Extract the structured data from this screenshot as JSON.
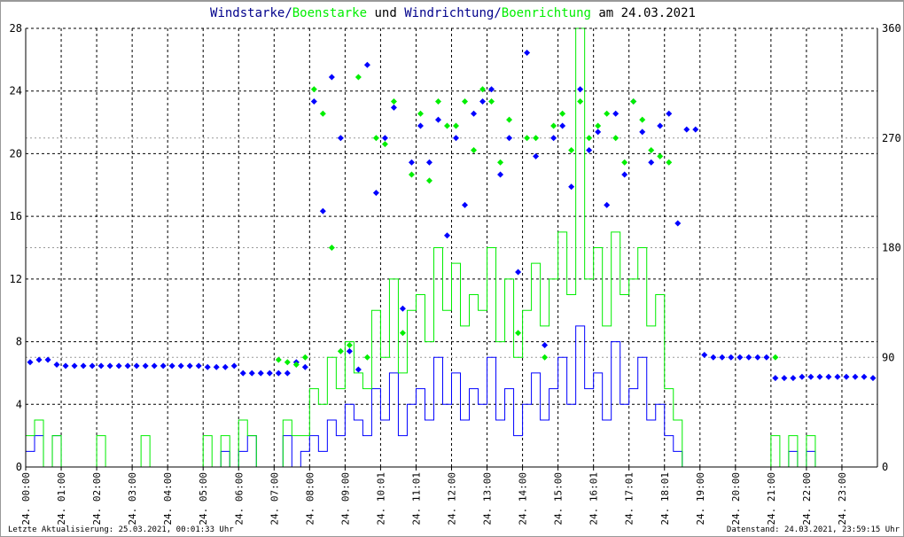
{
  "chart_data": {
    "type": "line",
    "title": {
      "part1": "Windstarke",
      "sep1": "/",
      "part2": "Boenstarke",
      "mid": " und ",
      "part3": "Windrichtung",
      "sep2": "/",
      "part4": "Boenrichtung",
      "tail": " am 24.03.2021"
    },
    "x_interval_minutes": 15,
    "x_tick_labels": [
      "24. 00:00",
      "24. 01:00",
      "24. 02:00",
      "24. 03:00",
      "24. 04:00",
      "24. 05:00",
      "24. 06:00",
      "24. 07:00",
      "24. 08:00",
      "24. 09:00",
      "24. 10:01",
      "24. 11:01",
      "24. 12:00",
      "24. 13:00",
      "24. 14:00",
      "24. 15:00",
      "24. 16:01",
      "24. 17:01",
      "24. 18:01",
      "24. 19:00",
      "24. 20:00",
      "24. 21:00",
      "24. 22:00",
      "24. 23:00"
    ],
    "y_left": {
      "ylim": [
        0,
        28
      ],
      "ticks": [
        0,
        4,
        8,
        12,
        16,
        20,
        24,
        28
      ]
    },
    "y_right": {
      "ylim": [
        0,
        360
      ],
      "ticks": [
        0,
        90,
        180,
        270,
        360
      ]
    },
    "colors": {
      "wind": "#0000ff",
      "gust": "#00ee00",
      "title_dark": "#00008b",
      "grid": "#000000",
      "grid_light": "#999999"
    },
    "series": [
      {
        "name": "Windstarke",
        "axis": "left",
        "style": "step",
        "values": [
          1,
          2,
          0,
          2,
          0,
          0,
          0,
          0,
          0,
          0,
          0,
          0,
          0,
          0,
          0,
          0,
          0,
          0,
          0,
          0,
          0,
          0,
          1,
          0,
          1,
          2,
          0,
          0,
          0,
          2,
          0,
          1,
          2,
          1,
          3,
          2,
          4,
          3,
          2,
          5,
          3,
          6,
          2,
          4,
          5,
          3,
          7,
          4,
          6,
          3,
          5,
          4,
          7,
          3,
          5,
          2,
          4,
          6,
          3,
          5,
          7,
          4,
          9,
          5,
          6,
          3,
          8,
          4,
          5,
          7,
          3,
          4,
          2,
          1,
          0,
          0,
          0,
          0,
          0,
          0,
          0,
          0,
          0,
          0,
          0,
          0,
          1,
          0,
          1,
          0,
          0,
          0,
          0,
          0,
          0,
          0
        ]
      },
      {
        "name": "Boenstarke",
        "axis": "left",
        "style": "step",
        "values": [
          2,
          3,
          0,
          2,
          0,
          0,
          0,
          0,
          2,
          0,
          0,
          0,
          0,
          2,
          0,
          0,
          0,
          0,
          0,
          0,
          2,
          0,
          2,
          0,
          3,
          2,
          0,
          0,
          0,
          3,
          2,
          2,
          5,
          4,
          7,
          5,
          8,
          6,
          5,
          10,
          7,
          12,
          6,
          10,
          11,
          8,
          14,
          10,
          13,
          9,
          11,
          10,
          14,
          8,
          12,
          7,
          10,
          13,
          9,
          12,
          15,
          11,
          28,
          12,
          14,
          9,
          15,
          11,
          12,
          14,
          9,
          11,
          5,
          3,
          0,
          0,
          0,
          0,
          0,
          0,
          0,
          0,
          0,
          0,
          2,
          0,
          2,
          0,
          2,
          0,
          0,
          0,
          0,
          0,
          0,
          0
        ]
      },
      {
        "name": "Windrichtung",
        "axis": "right",
        "style": "points",
        "values": [
          86,
          88,
          88,
          84,
          83,
          83,
          83,
          83,
          83,
          83,
          83,
          83,
          83,
          83,
          83,
          83,
          83,
          83,
          83,
          83,
          82,
          82,
          82,
          83,
          77,
          77,
          77,
          77,
          77,
          77,
          86,
          82,
          300,
          210,
          320,
          270,
          95,
          80,
          330,
          225,
          270,
          295,
          130,
          250,
          280,
          250,
          285,
          190,
          270,
          215,
          290,
          300,
          310,
          240,
          270,
          160,
          340,
          255,
          100,
          270,
          280,
          230,
          310,
          260,
          275,
          215,
          290,
          240,
          300,
          275,
          250,
          280,
          290,
          200,
          277,
          277,
          92,
          90,
          90,
          90,
          90,
          90,
          90,
          90,
          73,
          73,
          73,
          74,
          74,
          74,
          74,
          74,
          74,
          74,
          74,
          73
        ]
      },
      {
        "name": "Boenrichtung",
        "axis": "right",
        "style": "points",
        "values": [
          null,
          null,
          null,
          null,
          null,
          null,
          null,
          null,
          null,
          null,
          null,
          null,
          null,
          null,
          null,
          null,
          null,
          null,
          null,
          null,
          null,
          null,
          null,
          null,
          null,
          null,
          null,
          null,
          88,
          86,
          84,
          90,
          310,
          290,
          180,
          95,
          100,
          320,
          90,
          270,
          265,
          300,
          110,
          240,
          290,
          235,
          300,
          280,
          280,
          300,
          260,
          310,
          300,
          250,
          285,
          110,
          270,
          270,
          90,
          280,
          290,
          260,
          300,
          270,
          280,
          290,
          270,
          250,
          300,
          285,
          260,
          255,
          250,
          null,
          null,
          null,
          null,
          null,
          null,
          null,
          null,
          null,
          null,
          null,
          90,
          null,
          null,
          null,
          null,
          null,
          null,
          null,
          null,
          null,
          null,
          null
        ]
      }
    ]
  },
  "footer": {
    "left": "Letzte Aktualisierung: 25.03.2021, 00:01:33 Uhr",
    "right": "Datenstand: 24.03.2021, 23:59:15 Uhr"
  }
}
